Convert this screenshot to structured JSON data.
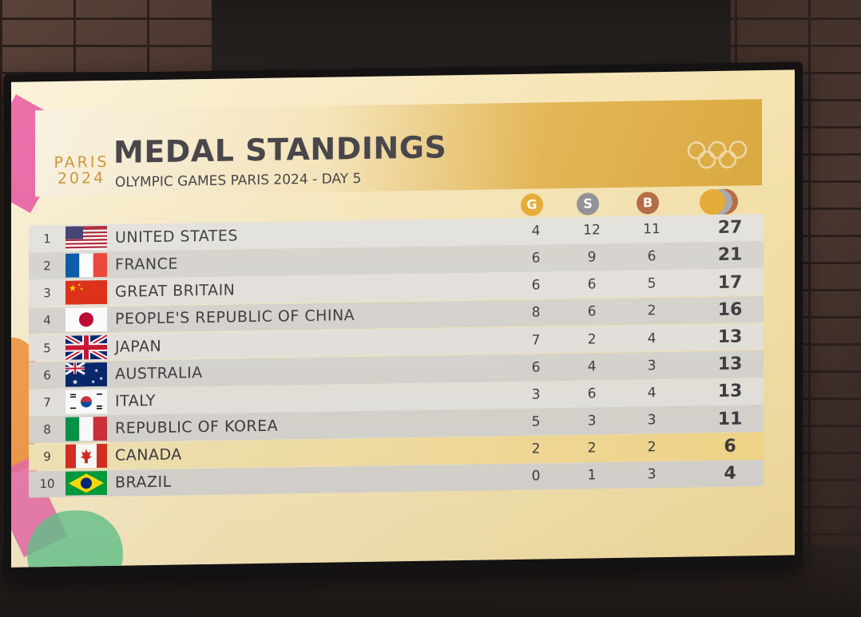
{
  "header": {
    "logo_line1": "PARIS",
    "logo_line2": "2024",
    "title": "MEDAL STANDINGS",
    "subtitle": "OLYMPIC GAMES PARIS 2024 - DAY 5"
  },
  "columns": {
    "gold": "G",
    "silver": "S",
    "bronze": "B"
  },
  "colors": {
    "gold": "#e7a82c",
    "silver": "#8d8e93",
    "bronze": "#b4643a",
    "text": "#3c3a3f"
  },
  "standings": [
    {
      "rank": "1",
      "country": "UNITED STATES",
      "gold": "4",
      "silver": "12",
      "bronze": "11",
      "total": "27",
      "flag": "us-flag"
    },
    {
      "rank": "2",
      "country": "FRANCE",
      "gold": "6",
      "silver": "9",
      "bronze": "6",
      "total": "21",
      "flag": "france-flag"
    },
    {
      "rank": "3",
      "country": "GREAT BRITAIN",
      "gold": "6",
      "silver": "6",
      "bronze": "5",
      "total": "17",
      "flag": "china-flag"
    },
    {
      "rank": "4",
      "country": "PEOPLE'S REPUBLIC OF CHINA",
      "gold": "8",
      "silver": "6",
      "bronze": "2",
      "total": "16",
      "flag": "japan-flag"
    },
    {
      "rank": "5",
      "country": "JAPAN",
      "gold": "7",
      "silver": "2",
      "bronze": "4",
      "total": "13",
      "flag": "uk-flag"
    },
    {
      "rank": "6",
      "country": "AUSTRALIA",
      "gold": "6",
      "silver": "4",
      "bronze": "3",
      "total": "13",
      "flag": "australia-flag"
    },
    {
      "rank": "7",
      "country": "ITALY",
      "gold": "3",
      "silver": "6",
      "bronze": "4",
      "total": "13",
      "flag": "korea-flag"
    },
    {
      "rank": "8",
      "country": "REPUBLIC OF KOREA",
      "gold": "5",
      "silver": "3",
      "bronze": "3",
      "total": "11",
      "flag": "italy-flag"
    },
    {
      "rank": "9",
      "country": "CANADA",
      "gold": "2",
      "silver": "2",
      "bronze": "2",
      "total": "6",
      "flag": "canada-flag"
    },
    {
      "rank": "10",
      "country": "BRAZIL",
      "gold": "0",
      "silver": "1",
      "bronze": "3",
      "total": "4",
      "flag": "brazil-flag"
    }
  ]
}
